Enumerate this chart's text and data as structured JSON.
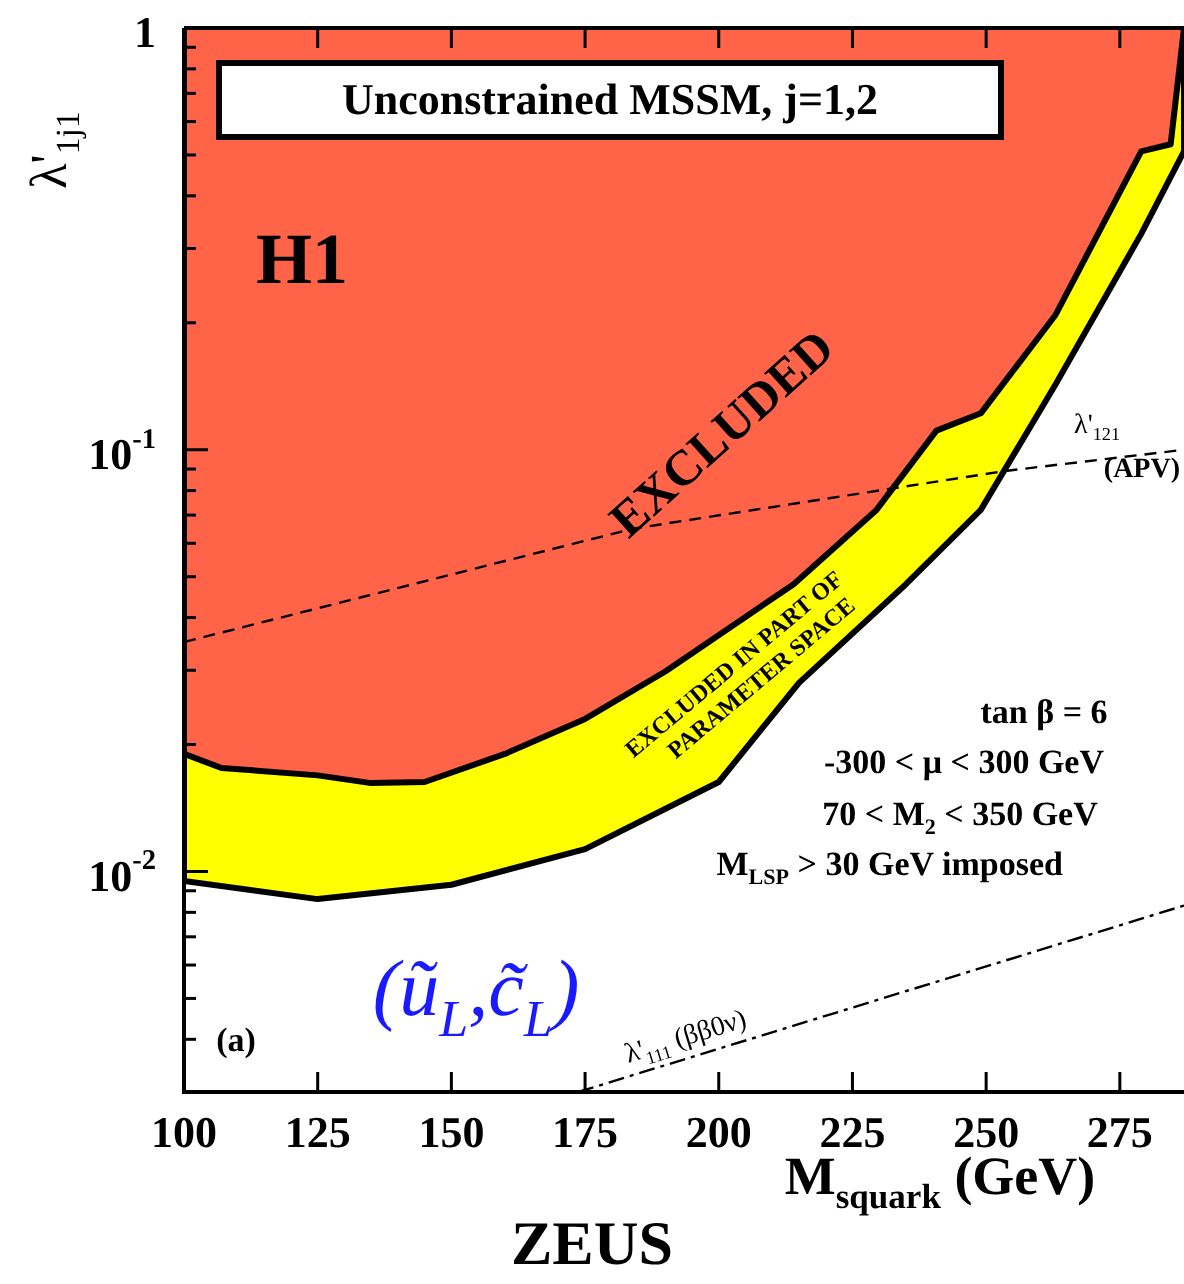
{
  "chart_data": {
    "type": "area",
    "title": "ZEUS",
    "xlabel": "M$_{squark}$ (GeV)",
    "ylabel": "λ'$_{1j1}$",
    "log": "y",
    "grid": false,
    "legend": false,
    "marker": "none",
    "xlim": [
      100,
      287
    ],
    "xticks": [
      100,
      125,
      150,
      175,
      200,
      225,
      250,
      275
    ],
    "ylim": [
      0.003,
      1
    ],
    "yticks": [
      {
        "value": 0.003,
        "label": null
      },
      {
        "value": 0.004,
        "label": null
      },
      {
        "value": 0.005,
        "label": null
      },
      {
        "value": 0.006,
        "label": null
      },
      {
        "value": 0.007,
        "label": null
      },
      {
        "value": 0.008,
        "label": null
      },
      {
        "value": 0.009,
        "label": null
      },
      {
        "value": 0.01,
        "label": "10$^{-2}$"
      },
      {
        "value": 0.02,
        "label": null
      },
      {
        "value": 0.03,
        "label": null
      },
      {
        "value": 0.04,
        "label": null
      },
      {
        "value": 0.05,
        "label": null
      },
      {
        "value": 0.06,
        "label": null
      },
      {
        "value": 0.07,
        "label": null
      },
      {
        "value": 0.08,
        "label": null
      },
      {
        "value": 0.09,
        "label": null
      },
      {
        "value": 0.1,
        "label": "10$^{-1}$"
      },
      {
        "value": 0.2,
        "label": null
      },
      {
        "value": 0.3,
        "label": null
      },
      {
        "value": 0.4,
        "label": null
      },
      {
        "value": 0.5,
        "label": null
      },
      {
        "value": 0.6,
        "label": null
      },
      {
        "value": 0.7,
        "label": null
      },
      {
        "value": 0.8,
        "label": null
      },
      {
        "value": 0.9,
        "label": null
      },
      {
        "value": 1,
        "label": "1"
      }
    ],
    "series": [
      {
        "type": "area",
        "color": "#ff6449",
        "x": [
          100,
          100,
          107,
          125,
          135,
          145,
          160,
          175,
          190,
          214,
          229.5,
          240.7,
          249,
          263,
          279,
          284.5,
          287
        ],
        "values": [
          1,
          0.019,
          0.0176,
          0.0169,
          0.0162,
          0.0163,
          0.019,
          0.023,
          0.0298,
          0.048,
          0.072,
          0.111,
          0.122,
          0.209,
          0.51,
          0.53,
          1.0
        ]
      },
      {
        "type": "area",
        "color": "#ffff00",
        "x": [
          100,
          100,
          125,
          150,
          175,
          200,
          215,
          235,
          249,
          263,
          279,
          287,
          287
        ],
        "values": [
          1,
          0.0095,
          0.0086,
          0.0093,
          0.0113,
          0.0163,
          0.028,
          0.048,
          0.072,
          0.143,
          0.325,
          0.51,
          1
        ]
      },
      {
        "type": "line",
        "name": "λ'$_{121}$ (APV)",
        "color": "#000000",
        "line_style": "dashed",
        "x": [
          100,
          184,
          253.4,
          287
        ],
        "values": [
          0.035,
          0.065,
          0.089,
          0.1
        ]
      },
      {
        "type": "line",
        "name": "λ'$_{111}$ (ββ0ν)",
        "color": "#000000",
        "line_style": "dashdot",
        "x": [
          173.7,
          287
        ],
        "values": [
          0.003,
          0.0083
        ]
      }
    ],
    "annotations": [
      "Unconstrained MSSM, j=1,2",
      "H1",
      "EXCLUDED",
      "EXCLUDED IN PART OF PARAMETER SPACE",
      "tan β = 6",
      "-300 < μ < 300 GeV",
      "70 < M$_{2}$ < 350 GeV",
      "M$_{LSP}$ > 30 GeV imposed",
      "(a)",
      "(ũ$_{L}$,c̃$_{L}$)"
    ]
  }
}
